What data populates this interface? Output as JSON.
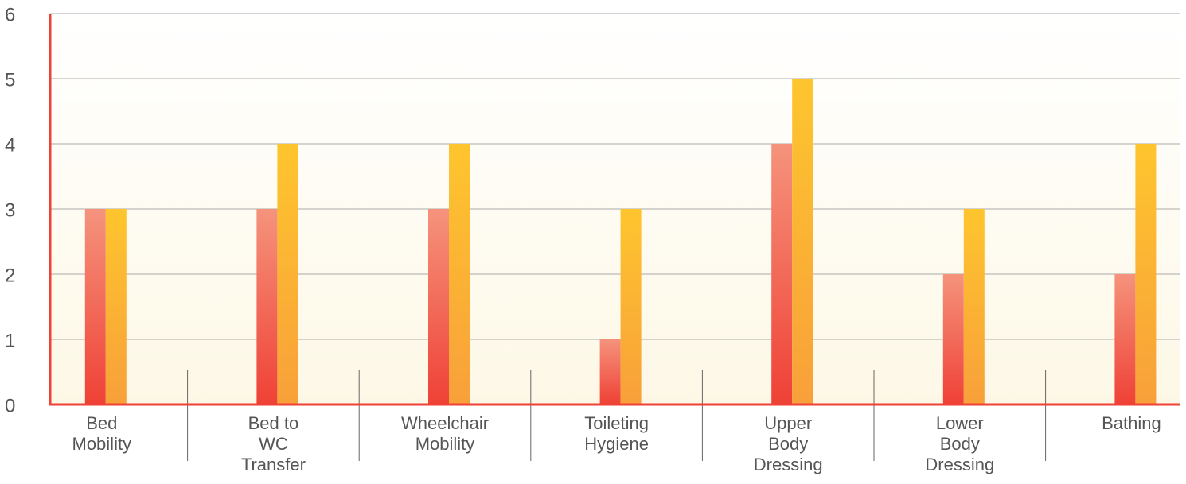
{
  "chart_data": {
    "type": "bar",
    "categories": [
      "Bed Mobility",
      "Bed to WC Transfer",
      "Wheelchair Mobility",
      "Toileting Hygiene",
      "Upper Body Dressing",
      "Lower Body Dressing",
      "Bathing"
    ],
    "series": [
      {
        "color": "#ef4136",
        "gradient": [
          "#f5937c",
          "#ef4136"
        ],
        "values": [
          3,
          3,
          3,
          1,
          4,
          2,
          2
        ]
      },
      {
        "color": "#fbb034",
        "gradient": [
          "#fec52e",
          "#f8a03a"
        ],
        "values": [
          3,
          4,
          4,
          3,
          5,
          3,
          4
        ]
      }
    ],
    "ylim": [
      0,
      6
    ],
    "yticks": [
      0,
      1,
      2,
      3,
      4,
      5,
      6
    ],
    "grid": true
  }
}
